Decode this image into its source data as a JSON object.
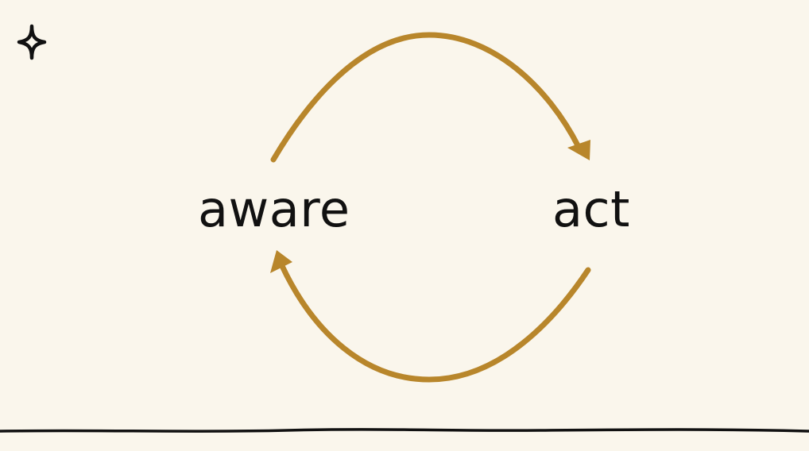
{
  "diagram": {
    "nodes": [
      {
        "id": "aware",
        "label": "aware"
      },
      {
        "id": "act",
        "label": "act"
      }
    ],
    "edges": [
      {
        "from": "aware",
        "to": "act"
      },
      {
        "from": "act",
        "to": "aware"
      }
    ]
  },
  "decorations": {
    "corner_icon": "sparkle-icon",
    "bottom_line": "hand-drawn-divider"
  },
  "colors": {
    "background": "#faf6ec",
    "arrow": "#b8862b",
    "text": "#111111",
    "line": "#111111"
  }
}
